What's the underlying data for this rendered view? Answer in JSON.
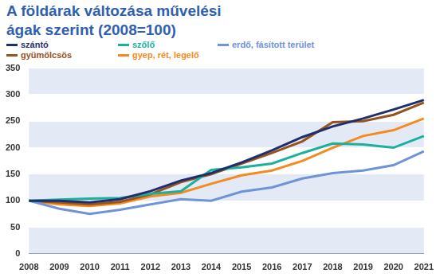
{
  "chart_data": {
    "type": "line",
    "title": "A földárak változása művelési ágak szerint (2008=100)",
    "categories": [
      "2008",
      "2009",
      "2010",
      "2011",
      "2012",
      "2013",
      "2014",
      "2015",
      "2016",
      "2017",
      "2018",
      "2019",
      "2020",
      "2021"
    ],
    "series": [
      {
        "name": "szántó",
        "color": "#1f2f6e",
        "values": [
          100,
          100,
          97,
          103,
          118,
          138,
          152,
          172,
          195,
          220,
          240,
          255,
          272,
          290
        ]
      },
      {
        "name": "szőlő",
        "color": "#1bb09c",
        "values": [
          100,
          102,
          104,
          105,
          113,
          118,
          158,
          163,
          170,
          190,
          208,
          206,
          200,
          222
        ]
      },
      {
        "name": "erdő, fásított terület",
        "color": "#6f93d8",
        "values": [
          100,
          85,
          75,
          83,
          93,
          103,
          100,
          117,
          125,
          142,
          152,
          157,
          167,
          193
        ]
      },
      {
        "name": "gyümölcsös",
        "color": "#96521f",
        "values": [
          100,
          97,
          93,
          98,
          112,
          135,
          150,
          170,
          190,
          212,
          248,
          250,
          262,
          285
        ]
      },
      {
        "name": "gyep, rét, legelő",
        "color": "#f58a20",
        "values": [
          100,
          93,
          90,
          95,
          108,
          115,
          132,
          148,
          157,
          175,
          200,
          222,
          233,
          255
        ]
      }
    ],
    "ylim": [
      0,
      350
    ],
    "yticks": [
      0,
      50,
      100,
      150,
      200,
      250,
      300,
      350
    ],
    "grid": true,
    "legend": "top"
  }
}
